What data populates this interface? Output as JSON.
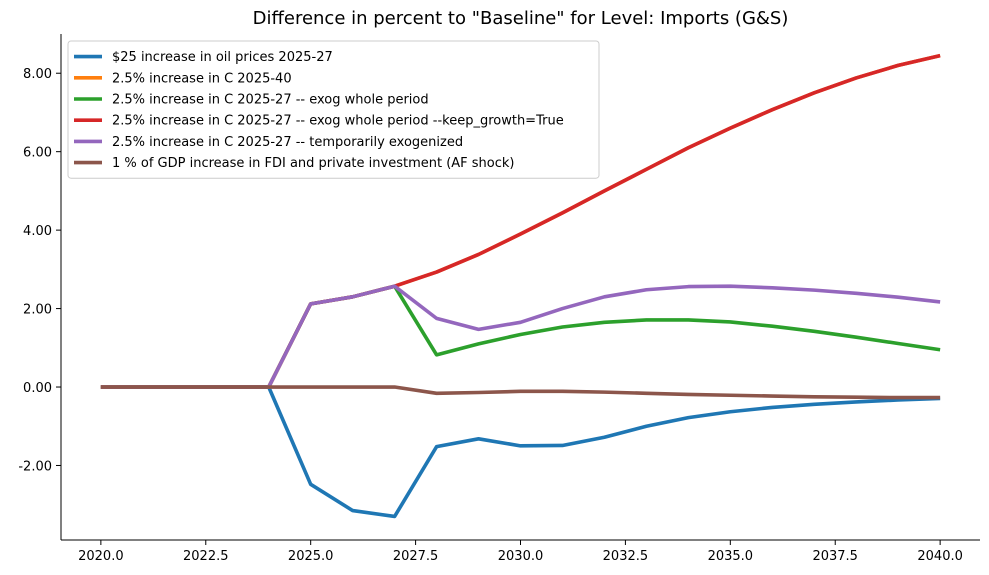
{
  "chart_data": {
    "type": "line",
    "title": "Difference in percent to \"Baseline\" for Level: Imports (G&S)",
    "xlabel": "",
    "ylabel": "",
    "x": [
      2020,
      2021,
      2022,
      2023,
      2024,
      2025,
      2026,
      2027,
      2028,
      2029,
      2030,
      2031,
      2032,
      2033,
      2034,
      2035,
      2036,
      2037,
      2038,
      2039,
      2040
    ],
    "xlim": [
      2019.05,
      2040.95
    ],
    "ylim": [
      -3.9,
      9.0
    ],
    "x_ticks": [
      2020.0,
      2022.5,
      2025.0,
      2027.5,
      2030.0,
      2032.5,
      2035.0,
      2037.5,
      2040.0
    ],
    "x_tick_labels": [
      "2020.0",
      "2022.5",
      "2025.0",
      "2027.5",
      "2030.0",
      "2032.5",
      "2035.0",
      "2037.5",
      "2040.0"
    ],
    "y_ticks": [
      -2,
      0,
      2,
      4,
      6,
      8
    ],
    "y_tick_labels": [
      "-2.00",
      "0.00",
      "2.00",
      "4.00",
      "6.00",
      "8.00"
    ],
    "grid": false,
    "legend_position": "top-left",
    "series": [
      {
        "name": "$25 increase in oil prices 2025-27",
        "color": "#1f77b4",
        "values": [
          0,
          0,
          0,
          0,
          0,
          -2.48,
          -3.15,
          -3.3,
          -1.52,
          -1.32,
          -1.5,
          -1.49,
          -1.28,
          -1.0,
          -0.78,
          -0.63,
          -0.52,
          -0.44,
          -0.38,
          -0.33,
          -0.29
        ]
      },
      {
        "name": "2.5% increase in C 2025-40",
        "color": "#ff7f0e",
        "values": [
          0,
          0,
          0,
          0,
          0,
          2.12,
          2.3,
          2.57,
          2.93,
          3.38,
          3.9,
          4.44,
          5.0,
          5.55,
          6.1,
          6.6,
          7.07,
          7.5,
          7.88,
          8.2,
          8.45
        ]
      },
      {
        "name": "2.5% increase in C 2025-27 -- exog whole period",
        "color": "#2ca02c",
        "values": [
          0,
          0,
          0,
          0,
          0,
          2.12,
          2.3,
          2.57,
          0.82,
          1.1,
          1.34,
          1.53,
          1.65,
          1.71,
          1.71,
          1.66,
          1.55,
          1.42,
          1.27,
          1.11,
          0.95
        ]
      },
      {
        "name": "2.5% increase in C 2025-27 -- exog whole period --keep_growth=True",
        "color": "#d62728",
        "values": [
          0,
          0,
          0,
          0,
          0,
          2.12,
          2.3,
          2.57,
          2.93,
          3.38,
          3.9,
          4.44,
          5.0,
          5.55,
          6.1,
          6.6,
          7.07,
          7.5,
          7.88,
          8.2,
          8.45
        ]
      },
      {
        "name": "2.5% increase in C 2025-27 -- temporarily exogenized",
        "color": "#9467bd",
        "values": [
          0,
          0,
          0,
          0,
          0,
          2.12,
          2.3,
          2.57,
          1.75,
          1.47,
          1.65,
          2.0,
          2.3,
          2.48,
          2.56,
          2.57,
          2.53,
          2.47,
          2.39,
          2.29,
          2.17
        ]
      },
      {
        "name": "1 % of GDP increase in FDI and private investment (AF shock)",
        "color": "#8c564b",
        "values": [
          0,
          0,
          0,
          0,
          0,
          0,
          0,
          0,
          -0.16,
          -0.14,
          -0.11,
          -0.11,
          -0.13,
          -0.16,
          -0.19,
          -0.21,
          -0.23,
          -0.25,
          -0.26,
          -0.27,
          -0.27
        ]
      }
    ]
  }
}
